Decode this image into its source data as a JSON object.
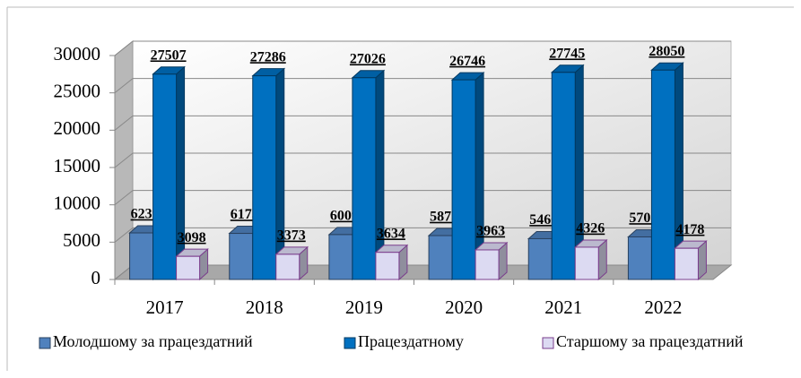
{
  "chart_data": {
    "type": "bar3d",
    "categories": [
      "2017",
      "2018",
      "2019",
      "2020",
      "2021",
      "2022"
    ],
    "series": [
      {
        "name": "Молодшому за працездатний",
        "color": "#4f81bd",
        "values": [
          6239,
          6173,
          6009,
          5875,
          5466,
          5701
        ]
      },
      {
        "name": "Працездатному",
        "color": "#0070c0",
        "values": [
          27507,
          27286,
          27026,
          26746,
          27745,
          28050
        ]
      },
      {
        "name": "Старшому за працездатний",
        "color": "#dcdaf2",
        "values": [
          3098,
          3373,
          3634,
          3963,
          4326,
          4178
        ]
      }
    ],
    "ylim": [
      0,
      30000
    ],
    "yticks": [
      0,
      5000,
      10000,
      15000,
      20000,
      25000,
      30000
    ],
    "grid": true,
    "legend": "bottom"
  }
}
